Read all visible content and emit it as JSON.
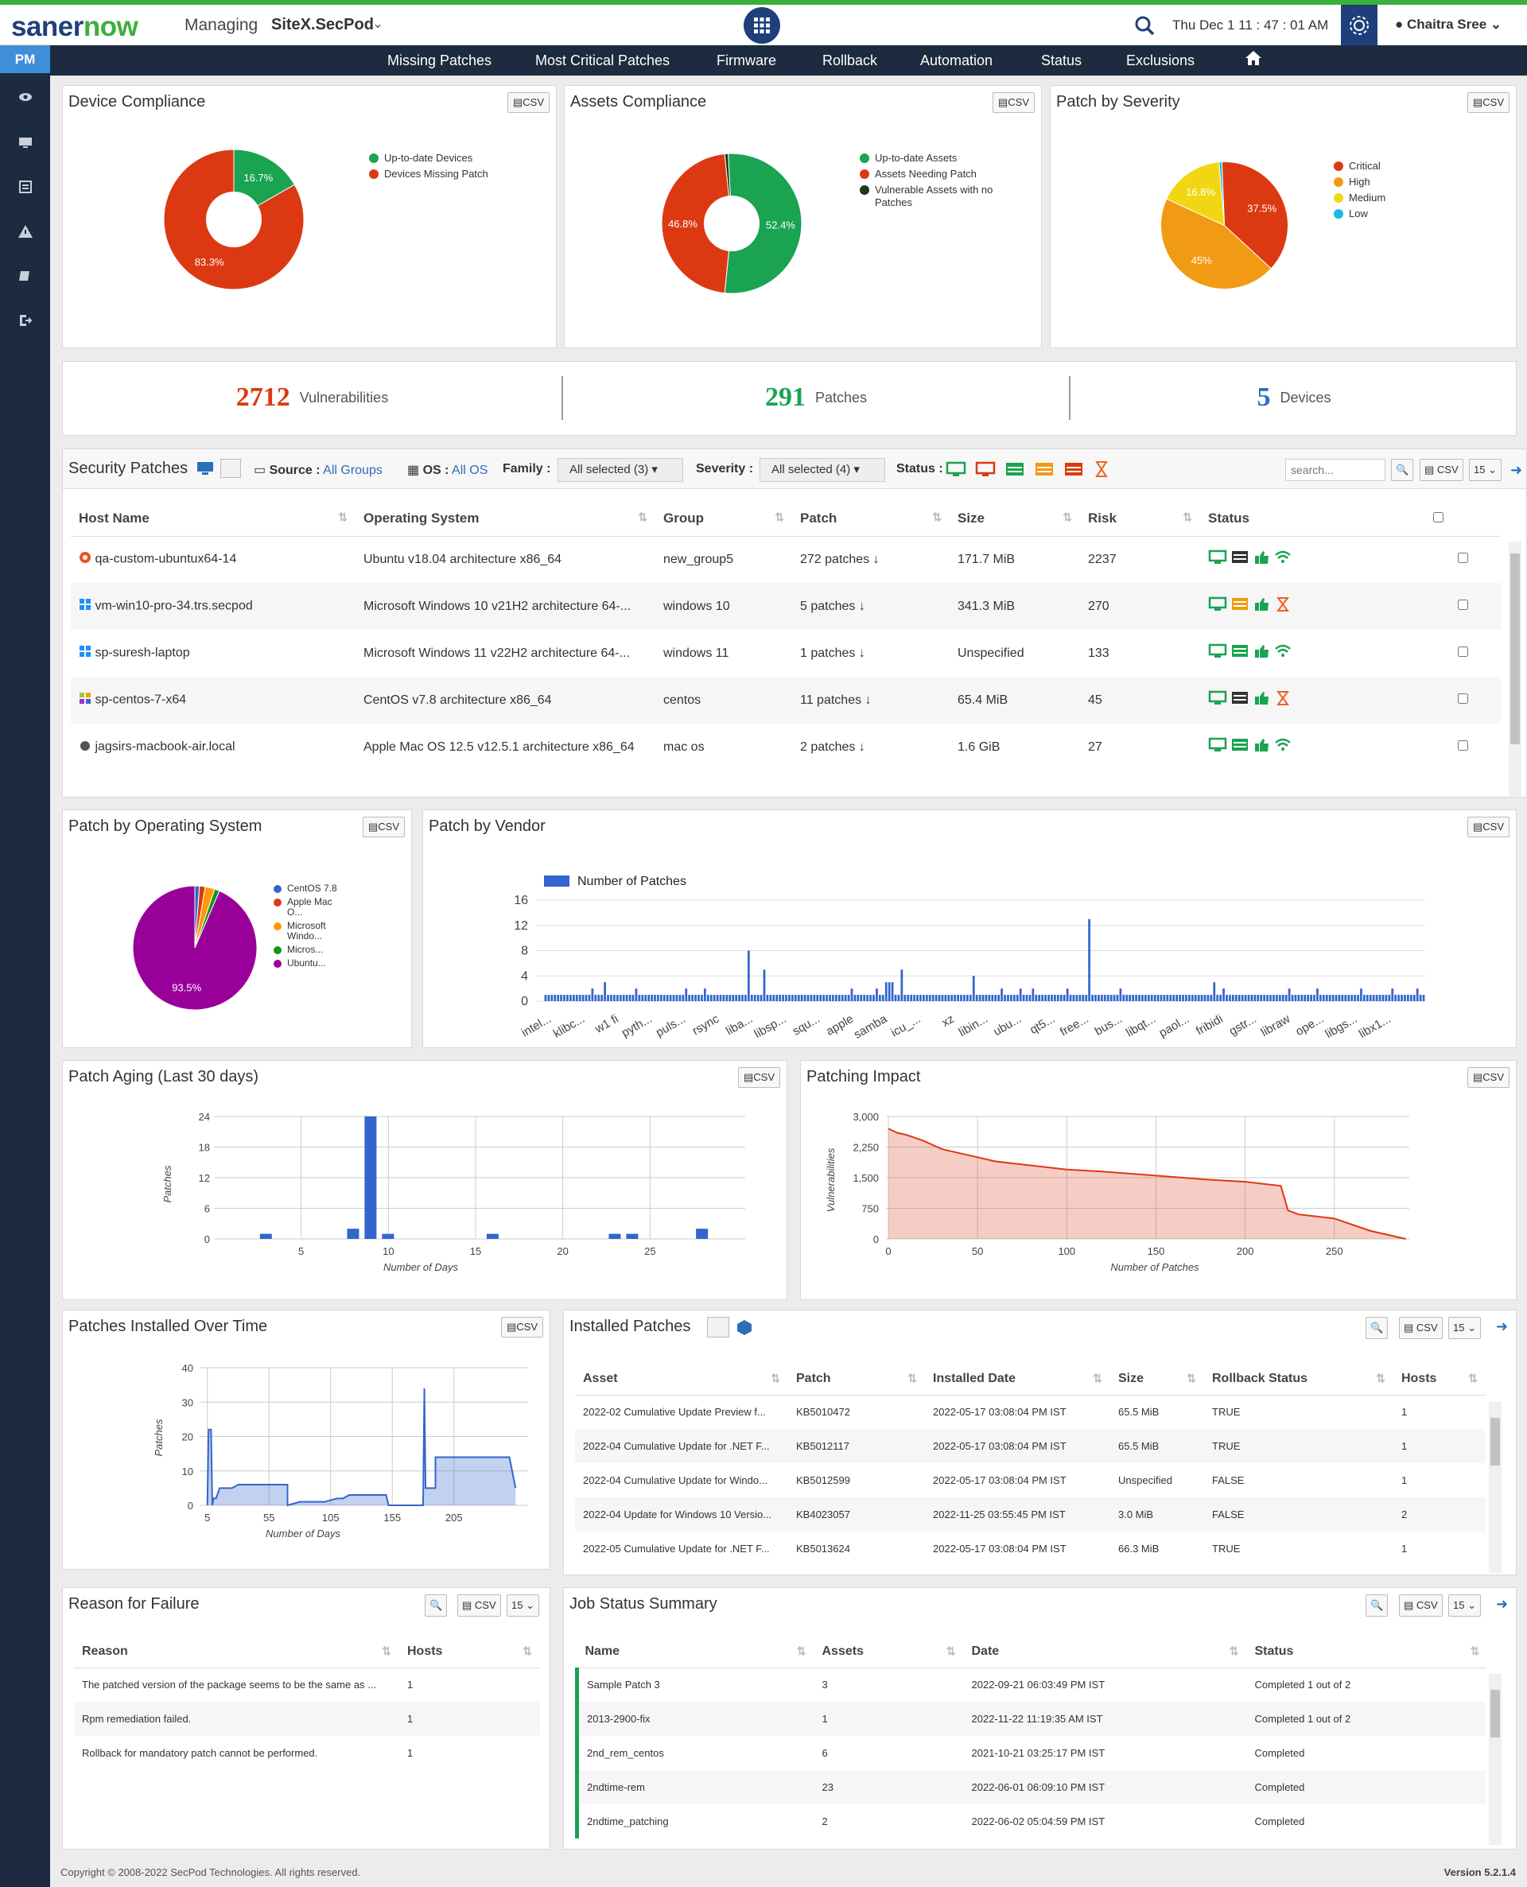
{
  "header": {
    "logo_a": "saner",
    "logo_b": "now",
    "managing": "Managing",
    "site": "SiteX.SecPod",
    "datetime": "Thu Dec 1   11 : 47 : 01 AM",
    "user": "Chaitra Sree"
  },
  "nav": [
    "Missing Patches",
    "Most Critical Patches",
    "Firmware",
    "Rollback",
    "Automation",
    "Status",
    "Exclusions"
  ],
  "sidebar": {
    "module": "PM"
  },
  "device_compliance": {
    "title": "Device Compliance",
    "csv": "CSV",
    "legend": [
      "Up-to-date Devices",
      "Devices Missing Patch"
    ],
    "colors": [
      "#1aa351",
      "#dc3912"
    ]
  },
  "assets_compliance": {
    "title": "Assets Compliance",
    "csv": "CSV",
    "legend": [
      "Up-to-date Assets",
      "Assets Needing Patch",
      "Vulnerable Assets with no Patches"
    ],
    "colors": [
      "#1aa351",
      "#dc3912",
      "#1a3a1a"
    ]
  },
  "patch_severity": {
    "title": "Patch by Severity",
    "csv": "CSV",
    "legend": [
      "Critical",
      "High",
      "Medium",
      "Low"
    ],
    "colors": [
      "#dc3912",
      "#f19a13",
      "#f1d713",
      "#18b8e8"
    ]
  },
  "kpis": {
    "vuln_num": "2712",
    "vuln_lbl": "Vulnerabilities",
    "patch_num": "291",
    "patch_lbl": "Patches",
    "dev_num": "5",
    "dev_lbl": "Devices"
  },
  "security_patches": {
    "title": "Security Patches",
    "source_lbl": "Source :",
    "source_val": "All Groups",
    "os_lbl": "OS :",
    "os_val": "All OS",
    "family_lbl": "Family :",
    "family_val": "All selected (3)",
    "severity_lbl": "Severity :",
    "severity_val": "All selected (4)",
    "status_lbl": "Status :",
    "search_ph": "search...",
    "csv": "CSV",
    "page_size": "15",
    "columns": [
      "Host Name",
      "Operating System",
      "Group",
      "Patch",
      "Size",
      "Risk",
      "Status"
    ],
    "rows": [
      {
        "host": "qa-custom-ubuntux64-14",
        "os": "Ubuntu v18.04 architecture x86_64",
        "group": "new_group5",
        "patch": "272 patches",
        "size": "171.7 MiB",
        "risk": "2237",
        "icon": "ubuntu-icon"
      },
      {
        "host": "vm-win10-pro-34.trs.secpod",
        "os": "Microsoft Windows 10 v21H2 architecture 64-...",
        "group": "windows 10",
        "patch": "5 patches",
        "size": "341.3 MiB",
        "risk": "270",
        "icon": "windows-icon"
      },
      {
        "host": "sp-suresh-laptop",
        "os": "Microsoft Windows 11 v22H2 architecture 64-...",
        "group": "windows 11",
        "patch": "1 patches",
        "size": "Unspecified",
        "risk": "133",
        "icon": "windows-icon"
      },
      {
        "host": "sp-centos-7-x64",
        "os": "CentOS v7.8 architecture x86_64",
        "group": "centos",
        "patch": "11 patches",
        "size": "65.4 MiB",
        "risk": "45",
        "icon": "centos-icon"
      },
      {
        "host": "jagsirs-macbook-air.local",
        "os": "Apple Mac OS 12.5 v12.5.1 architecture x86_64",
        "group": "mac os",
        "patch": "2 patches",
        "size": "1.6 GiB",
        "risk": "27",
        "icon": "apple-icon"
      }
    ]
  },
  "patch_os": {
    "title": "Patch by Operating System",
    "csv": "CSV",
    "legend": [
      "CentOS 7.8",
      "Apple Mac O...",
      "Microsoft Windo...",
      "Micros...",
      "Ubuntu..."
    ],
    "colors": [
      "#3366cc",
      "#dc3912",
      "#ff9900",
      "#109618",
      "#990099"
    ]
  },
  "patch_vendor": {
    "title": "Patch by Vendor",
    "csv": "CSV",
    "legend": "Number of Patches"
  },
  "patch_aging": {
    "title": "Patch Aging (Last 30 days)",
    "csv": "CSV"
  },
  "patching_impact": {
    "title": "Patching Impact",
    "csv": "CSV"
  },
  "installed_over_time": {
    "title": "Patches Installed Over Time",
    "csv": "CSV"
  },
  "installed_patches": {
    "title": "Installed Patches",
    "csv": "CSV",
    "page_size": "15",
    "columns": [
      "Asset",
      "Patch",
      "Installed Date",
      "Size",
      "Rollback Status",
      "Hosts"
    ],
    "rows": [
      {
        "asset": "2022-02 Cumulative Update Preview f...",
        "patch": "KB5010472",
        "date": "2022-05-17 03:08:04 PM IST",
        "size": "65.5 MiB",
        "rb": "TRUE",
        "hosts": "1"
      },
      {
        "asset": "2022-04 Cumulative Update for .NET F...",
        "patch": "KB5012117",
        "date": "2022-05-17 03:08:04 PM IST",
        "size": "65.5 MiB",
        "rb": "TRUE",
        "hosts": "1"
      },
      {
        "asset": "2022-04 Cumulative Update for Windo...",
        "patch": "KB5012599",
        "date": "2022-05-17 03:08:04 PM IST",
        "size": "Unspecified",
        "rb": "FALSE",
        "hosts": "1"
      },
      {
        "asset": "2022-04 Update for Windows 10 Versio...",
        "patch": "KB4023057",
        "date": "2022-11-25 03:55:45 PM IST",
        "size": "3.0 MiB",
        "rb": "FALSE",
        "hosts": "2"
      },
      {
        "asset": "2022-05 Cumulative Update for .NET F...",
        "patch": "KB5013624",
        "date": "2022-05-17 03:08:04 PM IST",
        "size": "66.3 MiB",
        "rb": "TRUE",
        "hosts": "1"
      }
    ]
  },
  "reason_failure": {
    "title": "Reason for Failure",
    "csv": "CSV",
    "page_size": "15",
    "columns": [
      "Reason",
      "Hosts"
    ],
    "rows": [
      {
        "reason": "The patched version of the package seems to be the same as ...",
        "hosts": "1"
      },
      {
        "reason": "Rpm remediation failed.",
        "hosts": "1"
      },
      {
        "reason": "Rollback for mandatory patch cannot be performed.",
        "hosts": "1"
      }
    ]
  },
  "job_status": {
    "title": "Job Status Summary",
    "csv": "CSV",
    "page_size": "15",
    "columns": [
      "Name",
      "Assets",
      "Date",
      "Status"
    ],
    "rows": [
      {
        "name": "Sample Patch 3",
        "assets": "3",
        "date": "2022-09-21 06:03:49 PM IST",
        "status": "Completed 1 out of 2"
      },
      {
        "name": "2013-2900-fix",
        "assets": "1",
        "date": "2022-11-22 11:19:35 AM IST",
        "status": "Completed 1 out of 2"
      },
      {
        "name": "2nd_rem_centos",
        "assets": "6",
        "date": "2021-10-21 03:25:17 PM IST",
        "status": "Completed"
      },
      {
        "name": "2ndtime-rem",
        "assets": "23",
        "date": "2022-06-01 06:09:10 PM IST",
        "status": "Completed"
      },
      {
        "name": "2ndtime_patching",
        "assets": "2",
        "date": "2022-06-02 05:04:59 PM IST",
        "status": "Completed"
      }
    ]
  },
  "footer": {
    "copyright": "Copyright © 2008-2022 SecPod Technologies. All rights reserved.",
    "version": "Version 5.2.1.4"
  },
  "chart_data": [
    {
      "type": "pie",
      "title": "Device Compliance",
      "labels": [
        "Up-to-date Devices",
        "Devices Missing Patch"
      ],
      "values": [
        16.7,
        83.3
      ],
      "value_labels": [
        "16.7%",
        "83.3%"
      ],
      "donut": true
    },
    {
      "type": "pie",
      "title": "Assets Compliance",
      "labels": [
        "Up-to-date Assets",
        "Assets Needing Patch",
        "Vulnerable Assets with no Patches"
      ],
      "values": [
        52.4,
        46.8,
        0.8
      ],
      "value_labels": [
        "52.4%",
        "46.8%",
        ""
      ],
      "donut": true
    },
    {
      "type": "pie",
      "title": "Patch by Severity",
      "labels": [
        "Critical",
        "High",
        "Medium",
        "Low"
      ],
      "values": [
        37.5,
        45,
        16.8,
        0.7
      ],
      "value_labels": [
        "37.5%",
        "45%",
        "16.8%",
        ""
      ]
    },
    {
      "type": "pie",
      "title": "Patch by Operating System",
      "labels": [
        "CentOS 7.8",
        "Apple Mac O...",
        "Microsoft Windo...",
        "Micros...",
        "Ubuntu..."
      ],
      "values": [
        1.2,
        1.5,
        2.5,
        1.3,
        93.5
      ],
      "value_labels": [
        "",
        "",
        "",
        "",
        "93.5%"
      ]
    },
    {
      "type": "bar",
      "title": "Patch by Vendor",
      "series": [
        {
          "name": "Number of Patches",
          "values": [
            1,
            1,
            1,
            1,
            1,
            1,
            1,
            1,
            1,
            1,
            1,
            1,
            1,
            1,
            1,
            2,
            1,
            1,
            1,
            3,
            1,
            1,
            1,
            1,
            1,
            1,
            1,
            1,
            1,
            2,
            1,
            1,
            1,
            1,
            1,
            1,
            1,
            1,
            1,
            1,
            1,
            1,
            1,
            1,
            1,
            2,
            1,
            1,
            1,
            1,
            1,
            2,
            1,
            1,
            1,
            1,
            1,
            1,
            1,
            1,
            1,
            1,
            1,
            1,
            1,
            8,
            1,
            1,
            1,
            1,
            5,
            1,
            1,
            1,
            1,
            1,
            1,
            1,
            1,
            1,
            1,
            1,
            1,
            1,
            1,
            1,
            1,
            1,
            1,
            1,
            1,
            1,
            1,
            1,
            1,
            1,
            1,
            1,
            2,
            1,
            1,
            1,
            1,
            1,
            1,
            1,
            2,
            1,
            1,
            3,
            3,
            3,
            1,
            1,
            5,
            1,
            1,
            1,
            1,
            1,
            1,
            1,
            1,
            1,
            1,
            1,
            1,
            1,
            1,
            1,
            1,
            1,
            1,
            1,
            1,
            1,
            1,
            4,
            1,
            1,
            1,
            1,
            1,
            1,
            1,
            1,
            2,
            1,
            1,
            1,
            1,
            1,
            2,
            1,
            1,
            1,
            2,
            1,
            1,
            1,
            1,
            1,
            1,
            1,
            1,
            1,
            1,
            2,
            1,
            1,
            1,
            1,
            1,
            1,
            13,
            1,
            1,
            1,
            1,
            1,
            1,
            1,
            1,
            1,
            2,
            1,
            1,
            1,
            1,
            1,
            1,
            1,
            1,
            1,
            1,
            1,
            1,
            1,
            1,
            1,
            1,
            1,
            1,
            1,
            1,
            1,
            1,
            1,
            1,
            1,
            1,
            1,
            1,
            1,
            3,
            1,
            1,
            2,
            1,
            1,
            1,
            1,
            1,
            1,
            1,
            1,
            1,
            1,
            1,
            1,
            1,
            1,
            1,
            1,
            1,
            1,
            1,
            1,
            2,
            1,
            1,
            1,
            1,
            1,
            1,
            1,
            1,
            2,
            1,
            1,
            1,
            1,
            1,
            1,
            1,
            1,
            1,
            1,
            1,
            1,
            1,
            2,
            1,
            1,
            1,
            1,
            1,
            1,
            1,
            1,
            1,
            2,
            1,
            1,
            1,
            1,
            1,
            1,
            1,
            2,
            1,
            1
          ]
        }
      ],
      "tick_labels": [
        "intel...",
        "klibc...",
        "w1 fi",
        "pyth...",
        "puls...",
        "rsync",
        "liba...",
        "libsp...",
        "squ...",
        "apple",
        "samba",
        "icu_...",
        "xz",
        "libin...",
        "ubu...",
        "qt5...",
        "free...",
        "bus...",
        "libqt...",
        "paol...",
        "fribidi",
        "gstr...",
        "libraw",
        "ope...",
        "libgs...",
        "libx1..."
      ],
      "ylim": [
        0,
        16
      ],
      "yticks": [
        0,
        4,
        8,
        12,
        16
      ]
    },
    {
      "type": "bar",
      "title": "Patch Aging (Last 30 days)",
      "xlabel": "Number of Days",
      "ylabel": "Patches",
      "x": [
        3,
        8,
        9,
        10,
        16,
        23,
        24,
        28
      ],
      "values": [
        1,
        2,
        24,
        1,
        1,
        1,
        1,
        2
      ],
      "xlim": [
        0,
        30
      ],
      "ylim": [
        0,
        24
      ],
      "xticks": [
        5,
        10,
        15,
        20,
        25
      ],
      "yticks": [
        0,
        6,
        12,
        18,
        24
      ]
    },
    {
      "type": "area",
      "title": "Patching Impact",
      "xlabel": "Number of Patches",
      "ylabel": "Vulnerabilities",
      "x": [
        0,
        5,
        10,
        20,
        30,
        50,
        60,
        80,
        100,
        120,
        150,
        180,
        200,
        220,
        224,
        230,
        250,
        270,
        290
      ],
      "values": [
        2700,
        2600,
        2550,
        2400,
        2200,
        2000,
        1900,
        1800,
        1700,
        1650,
        1550,
        1450,
        1400,
        1300,
        700,
        600,
        500,
        200,
        0
      ],
      "xlim": [
        0,
        292
      ],
      "ylim": [
        0,
        3000
      ],
      "xticks": [
        0,
        50,
        100,
        150,
        200,
        250
      ],
      "yticks": [
        0,
        750,
        1500,
        2250,
        3000
      ],
      "ytick_labels": [
        "0",
        "750",
        "1,500",
        "2,250",
        "3,000"
      ]
    },
    {
      "type": "area",
      "title": "Patches Installed Over Time",
      "xlabel": "Number of Days",
      "ylabel": "Patches",
      "x": [
        5,
        6,
        8,
        9,
        10,
        12,
        15,
        25,
        30,
        60,
        70,
        70,
        80,
        100,
        110,
        115,
        120,
        150,
        152,
        180,
        181,
        182,
        190,
        190,
        200,
        210,
        210,
        250,
        255
      ],
      "values": [
        0,
        22,
        22,
        0,
        2,
        2,
        5,
        5,
        6,
        6,
        6,
        0,
        1,
        1,
        2,
        2,
        3,
        3,
        0,
        0,
        34,
        5,
        5,
        14,
        14,
        14,
        14,
        14,
        5
      ],
      "xlim": [
        0,
        260
      ],
      "ylim": [
        0,
        40
      ],
      "xticks": [
        5,
        55,
        105,
        155,
        205
      ],
      "yticks": [
        0,
        10,
        20,
        30,
        40
      ]
    }
  ]
}
